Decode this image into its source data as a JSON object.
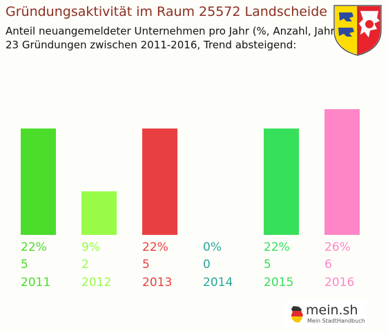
{
  "header": {
    "title": "Gründungsaktivität im Raum 25572 Landscheide",
    "subtitle_line1": "Anteil neuangemeldeter Unternehmen pro Jahr (%, Anzahl, Jahr)",
    "subtitle_line2": "23 Gründungen zwischen 2011-2016, Trend absteigend:"
  },
  "chart_data": {
    "type": "bar",
    "categories": [
      "2011",
      "2012",
      "2013",
      "2014",
      "2015",
      "2016"
    ],
    "values": [
      22,
      9,
      22,
      0,
      22,
      26
    ],
    "counts": [
      5,
      2,
      5,
      0,
      5,
      6
    ],
    "percent_labels": [
      "22%",
      "9%",
      "22%",
      "0%",
      "22%",
      "26%"
    ],
    "count_labels": [
      "5",
      "2",
      "5",
      "0",
      "5",
      "6"
    ],
    "colors": [
      "#4cdc2c",
      "#98fb48",
      "#e84040",
      "#2aa59a",
      "#36e05a",
      "#ff86c6"
    ],
    "ylim": [
      0,
      26
    ],
    "grid": false,
    "legend": "none"
  },
  "logo": {
    "text": "mein.sh",
    "sub": "Mein StadtHandbuch",
    "icon": "germany-map-icon"
  },
  "crest": {
    "icon": "coat-of-arms-icon",
    "colors": [
      "#e8232b",
      "#ffdd00",
      "#2e4a9e"
    ]
  }
}
